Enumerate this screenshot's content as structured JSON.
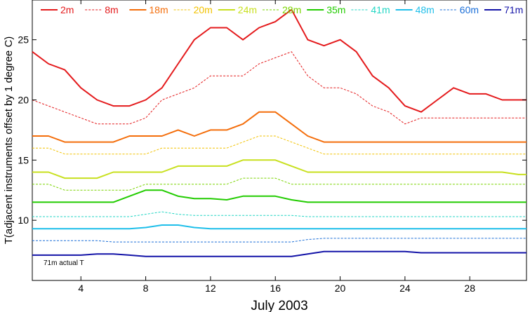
{
  "chart_data": {
    "type": "line",
    "title": "",
    "xlabel": "July 2003",
    "ylabel": "T(adjacent instruments offset by 1 degree C)",
    "xlim": [
      1,
      31.5
    ],
    "ylim": [
      5,
      28.3
    ],
    "xticks": [
      4,
      8,
      12,
      16,
      20,
      24,
      28
    ],
    "yticks": [
      10,
      15,
      20,
      25
    ],
    "grid": false,
    "legend_position": "top",
    "annotation": "71m actual T",
    "series": [
      {
        "name": "2m",
        "color": "#e41a1c",
        "dash": "solid",
        "width": 2,
        "x": [
          1,
          2,
          3,
          4,
          5,
          6,
          7,
          8,
          9,
          10,
          11,
          12,
          13,
          14,
          15,
          16,
          17,
          18,
          19,
          20,
          21,
          22,
          23,
          24,
          25,
          26,
          27,
          28,
          29,
          30,
          31,
          31.5
        ],
        "y": [
          24,
          23,
          22.5,
          21,
          20,
          19.5,
          19.5,
          20,
          21,
          23,
          25,
          26,
          26,
          25,
          26,
          26.5,
          27.5,
          25,
          24.5,
          25,
          24,
          22,
          21,
          19.5,
          19,
          20,
          21,
          20.5,
          20.5,
          20,
          20,
          20
        ]
      },
      {
        "name": "8m",
        "color": "#e41a1c",
        "dash": "dotted",
        "width": 1,
        "x": [
          1,
          2,
          3,
          4,
          5,
          6,
          7,
          8,
          9,
          10,
          11,
          12,
          13,
          14,
          15,
          16,
          17,
          18,
          19,
          20,
          21,
          22,
          23,
          24,
          25,
          26,
          27,
          28,
          29,
          30,
          31,
          31.5
        ],
        "y": [
          20,
          19.5,
          19,
          18.5,
          18,
          18,
          18,
          18.5,
          20,
          20.5,
          21,
          22,
          22,
          22,
          23,
          23.5,
          24,
          22,
          21,
          21,
          20.5,
          19.5,
          19,
          18,
          18.5,
          18.5,
          18.5,
          18.5,
          18.5,
          18.5,
          18.5,
          18.5
        ]
      },
      {
        "name": "18m",
        "color": "#f46d0a",
        "dash": "solid",
        "width": 2,
        "x": [
          1,
          2,
          3,
          4,
          5,
          6,
          7,
          8,
          9,
          10,
          11,
          12,
          13,
          14,
          15,
          16,
          17,
          18,
          19,
          20,
          21,
          22,
          23,
          24,
          25,
          26,
          27,
          28,
          29,
          30,
          31,
          31.5
        ],
        "y": [
          17,
          17,
          16.5,
          16.5,
          16.5,
          16.5,
          17,
          17,
          17,
          17.5,
          17,
          17.5,
          17.5,
          18,
          19,
          19,
          18,
          17,
          16.5,
          16.5,
          16.5,
          16.5,
          16.5,
          16.5,
          16.5,
          16.5,
          16.5,
          16.5,
          16.5,
          16.5,
          16.5,
          16.5
        ]
      },
      {
        "name": "20m",
        "color": "#f2c200",
        "dash": "dotted",
        "width": 1,
        "x": [
          1,
          2,
          3,
          4,
          5,
          6,
          7,
          8,
          9,
          10,
          11,
          12,
          13,
          14,
          15,
          16,
          17,
          18,
          19,
          20,
          21,
          22,
          23,
          24,
          25,
          26,
          27,
          28,
          29,
          30,
          31,
          31.5
        ],
        "y": [
          16,
          16,
          15.5,
          15.5,
          15.5,
          15.5,
          15.5,
          15.5,
          16,
          16,
          16,
          16,
          16,
          16.5,
          17,
          17,
          16.5,
          16,
          15.5,
          15.5,
          15.5,
          15.5,
          15.5,
          15.5,
          15.5,
          15.5,
          15.5,
          15.5,
          15.5,
          15.5,
          15.5,
          15.5
        ]
      },
      {
        "name": "24m",
        "color": "#c8e01e",
        "dash": "solid",
        "width": 2,
        "x": [
          1,
          2,
          3,
          4,
          5,
          6,
          7,
          8,
          9,
          10,
          11,
          12,
          13,
          14,
          15,
          16,
          17,
          18,
          19,
          20,
          21,
          22,
          23,
          24,
          25,
          26,
          27,
          28,
          29,
          30,
          31,
          31.5
        ],
        "y": [
          14,
          14,
          13.5,
          13.5,
          13.5,
          14,
          14,
          14,
          14,
          14.5,
          14.5,
          14.5,
          14.5,
          15,
          15,
          15,
          14.5,
          14,
          14,
          14,
          14,
          14,
          14,
          14,
          14,
          14,
          14,
          14,
          14,
          14,
          13.8,
          13.8
        ]
      },
      {
        "name": "28m",
        "color": "#7ad400",
        "dash": "dotted",
        "width": 1,
        "x": [
          1,
          2,
          3,
          4,
          5,
          6,
          7,
          8,
          9,
          10,
          11,
          12,
          13,
          14,
          15,
          16,
          17,
          18,
          19,
          20,
          21,
          22,
          23,
          24,
          25,
          26,
          27,
          28,
          29,
          30,
          31,
          31.5
        ],
        "y": [
          13,
          13,
          12.5,
          12.5,
          12.5,
          12.5,
          12.5,
          13,
          13,
          13,
          13,
          13,
          13,
          13.5,
          13.5,
          13.5,
          13,
          13,
          13,
          13,
          13,
          13,
          13,
          13,
          13,
          13,
          13,
          13,
          13,
          13,
          13,
          13
        ]
      },
      {
        "name": "35m",
        "color": "#22cc00",
        "dash": "solid",
        "width": 2,
        "x": [
          1,
          2,
          3,
          4,
          5,
          6,
          7,
          8,
          9,
          10,
          11,
          12,
          13,
          14,
          15,
          16,
          17,
          18,
          19,
          20,
          21,
          22,
          23,
          24,
          25,
          26,
          27,
          28,
          29,
          30,
          31,
          31.5
        ],
        "y": [
          11.5,
          11.5,
          11.5,
          11.5,
          11.5,
          11.5,
          12,
          12.5,
          12.5,
          12,
          11.8,
          11.8,
          11.7,
          12,
          12,
          12,
          11.7,
          11.5,
          11.5,
          11.5,
          11.5,
          11.5,
          11.5,
          11.5,
          11.5,
          11.5,
          11.5,
          11.5,
          11.5,
          11.5,
          11.5,
          11.5
        ]
      },
      {
        "name": "41m",
        "color": "#21d6c4",
        "dash": "dotted",
        "width": 1,
        "x": [
          1,
          2,
          3,
          4,
          5,
          6,
          7,
          8,
          9,
          10,
          11,
          12,
          13,
          14,
          15,
          16,
          17,
          18,
          19,
          20,
          21,
          22,
          23,
          24,
          25,
          26,
          27,
          28,
          29,
          30,
          31,
          31.5
        ],
        "y": [
          10.3,
          10.3,
          10.3,
          10.3,
          10.3,
          10.3,
          10.3,
          10.5,
          10.7,
          10.5,
          10.4,
          10.4,
          10.4,
          10.4,
          10.4,
          10.4,
          10.4,
          10.3,
          10.3,
          10.3,
          10.3,
          10.3,
          10.3,
          10.3,
          10.3,
          10.3,
          10.3,
          10.3,
          10.3,
          10.3,
          10.3,
          10.3
        ]
      },
      {
        "name": "48m",
        "color": "#1fbfea",
        "dash": "solid",
        "width": 2,
        "x": [
          1,
          2,
          3,
          4,
          5,
          6,
          7,
          8,
          9,
          10,
          11,
          12,
          13,
          14,
          15,
          16,
          17,
          18,
          19,
          20,
          21,
          22,
          23,
          24,
          25,
          26,
          27,
          28,
          29,
          30,
          31,
          31.5
        ],
        "y": [
          9.3,
          9.3,
          9.3,
          9.3,
          9.3,
          9.3,
          9.3,
          9.4,
          9.6,
          9.6,
          9.4,
          9.3,
          9.3,
          9.3,
          9.3,
          9.3,
          9.3,
          9.3,
          9.3,
          9.3,
          9.3,
          9.3,
          9.3,
          9.3,
          9.3,
          9.3,
          9.3,
          9.3,
          9.3,
          9.3,
          9.3,
          9.3
        ]
      },
      {
        "name": "60m",
        "color": "#1a6ed8",
        "dash": "dotted",
        "width": 1,
        "x": [
          1,
          2,
          3,
          4,
          5,
          6,
          7,
          8,
          9,
          10,
          11,
          12,
          13,
          14,
          15,
          16,
          17,
          18,
          19,
          20,
          21,
          22,
          23,
          24,
          25,
          26,
          27,
          28,
          29,
          30,
          31,
          31.5
        ],
        "y": [
          8.3,
          8.3,
          8.3,
          8.3,
          8.3,
          8.2,
          8.2,
          8.2,
          8.2,
          8.2,
          8.2,
          8.2,
          8.2,
          8.2,
          8.2,
          8.2,
          8.2,
          8.4,
          8.5,
          8.5,
          8.5,
          8.5,
          8.5,
          8.5,
          8.5,
          8.5,
          8.5,
          8.5,
          8.5,
          8.5,
          8.5,
          8.5
        ]
      },
      {
        "name": "71m",
        "color": "#1414a8",
        "dash": "solid",
        "width": 2,
        "x": [
          1,
          2,
          3,
          4,
          5,
          6,
          7,
          8,
          9,
          10,
          11,
          12,
          13,
          14,
          15,
          16,
          17,
          18,
          19,
          20,
          21,
          22,
          23,
          24,
          25,
          26,
          27,
          28,
          29,
          30,
          31,
          31.5
        ],
        "y": [
          7.1,
          7.1,
          7.1,
          7.1,
          7.2,
          7.2,
          7.1,
          7.0,
          7.0,
          7.0,
          7.0,
          7.0,
          7.0,
          7.0,
          7.0,
          7.0,
          7.0,
          7.2,
          7.4,
          7.4,
          7.4,
          7.4,
          7.4,
          7.4,
          7.3,
          7.3,
          7.3,
          7.3,
          7.3,
          7.3,
          7.3,
          7.3
        ]
      }
    ]
  }
}
